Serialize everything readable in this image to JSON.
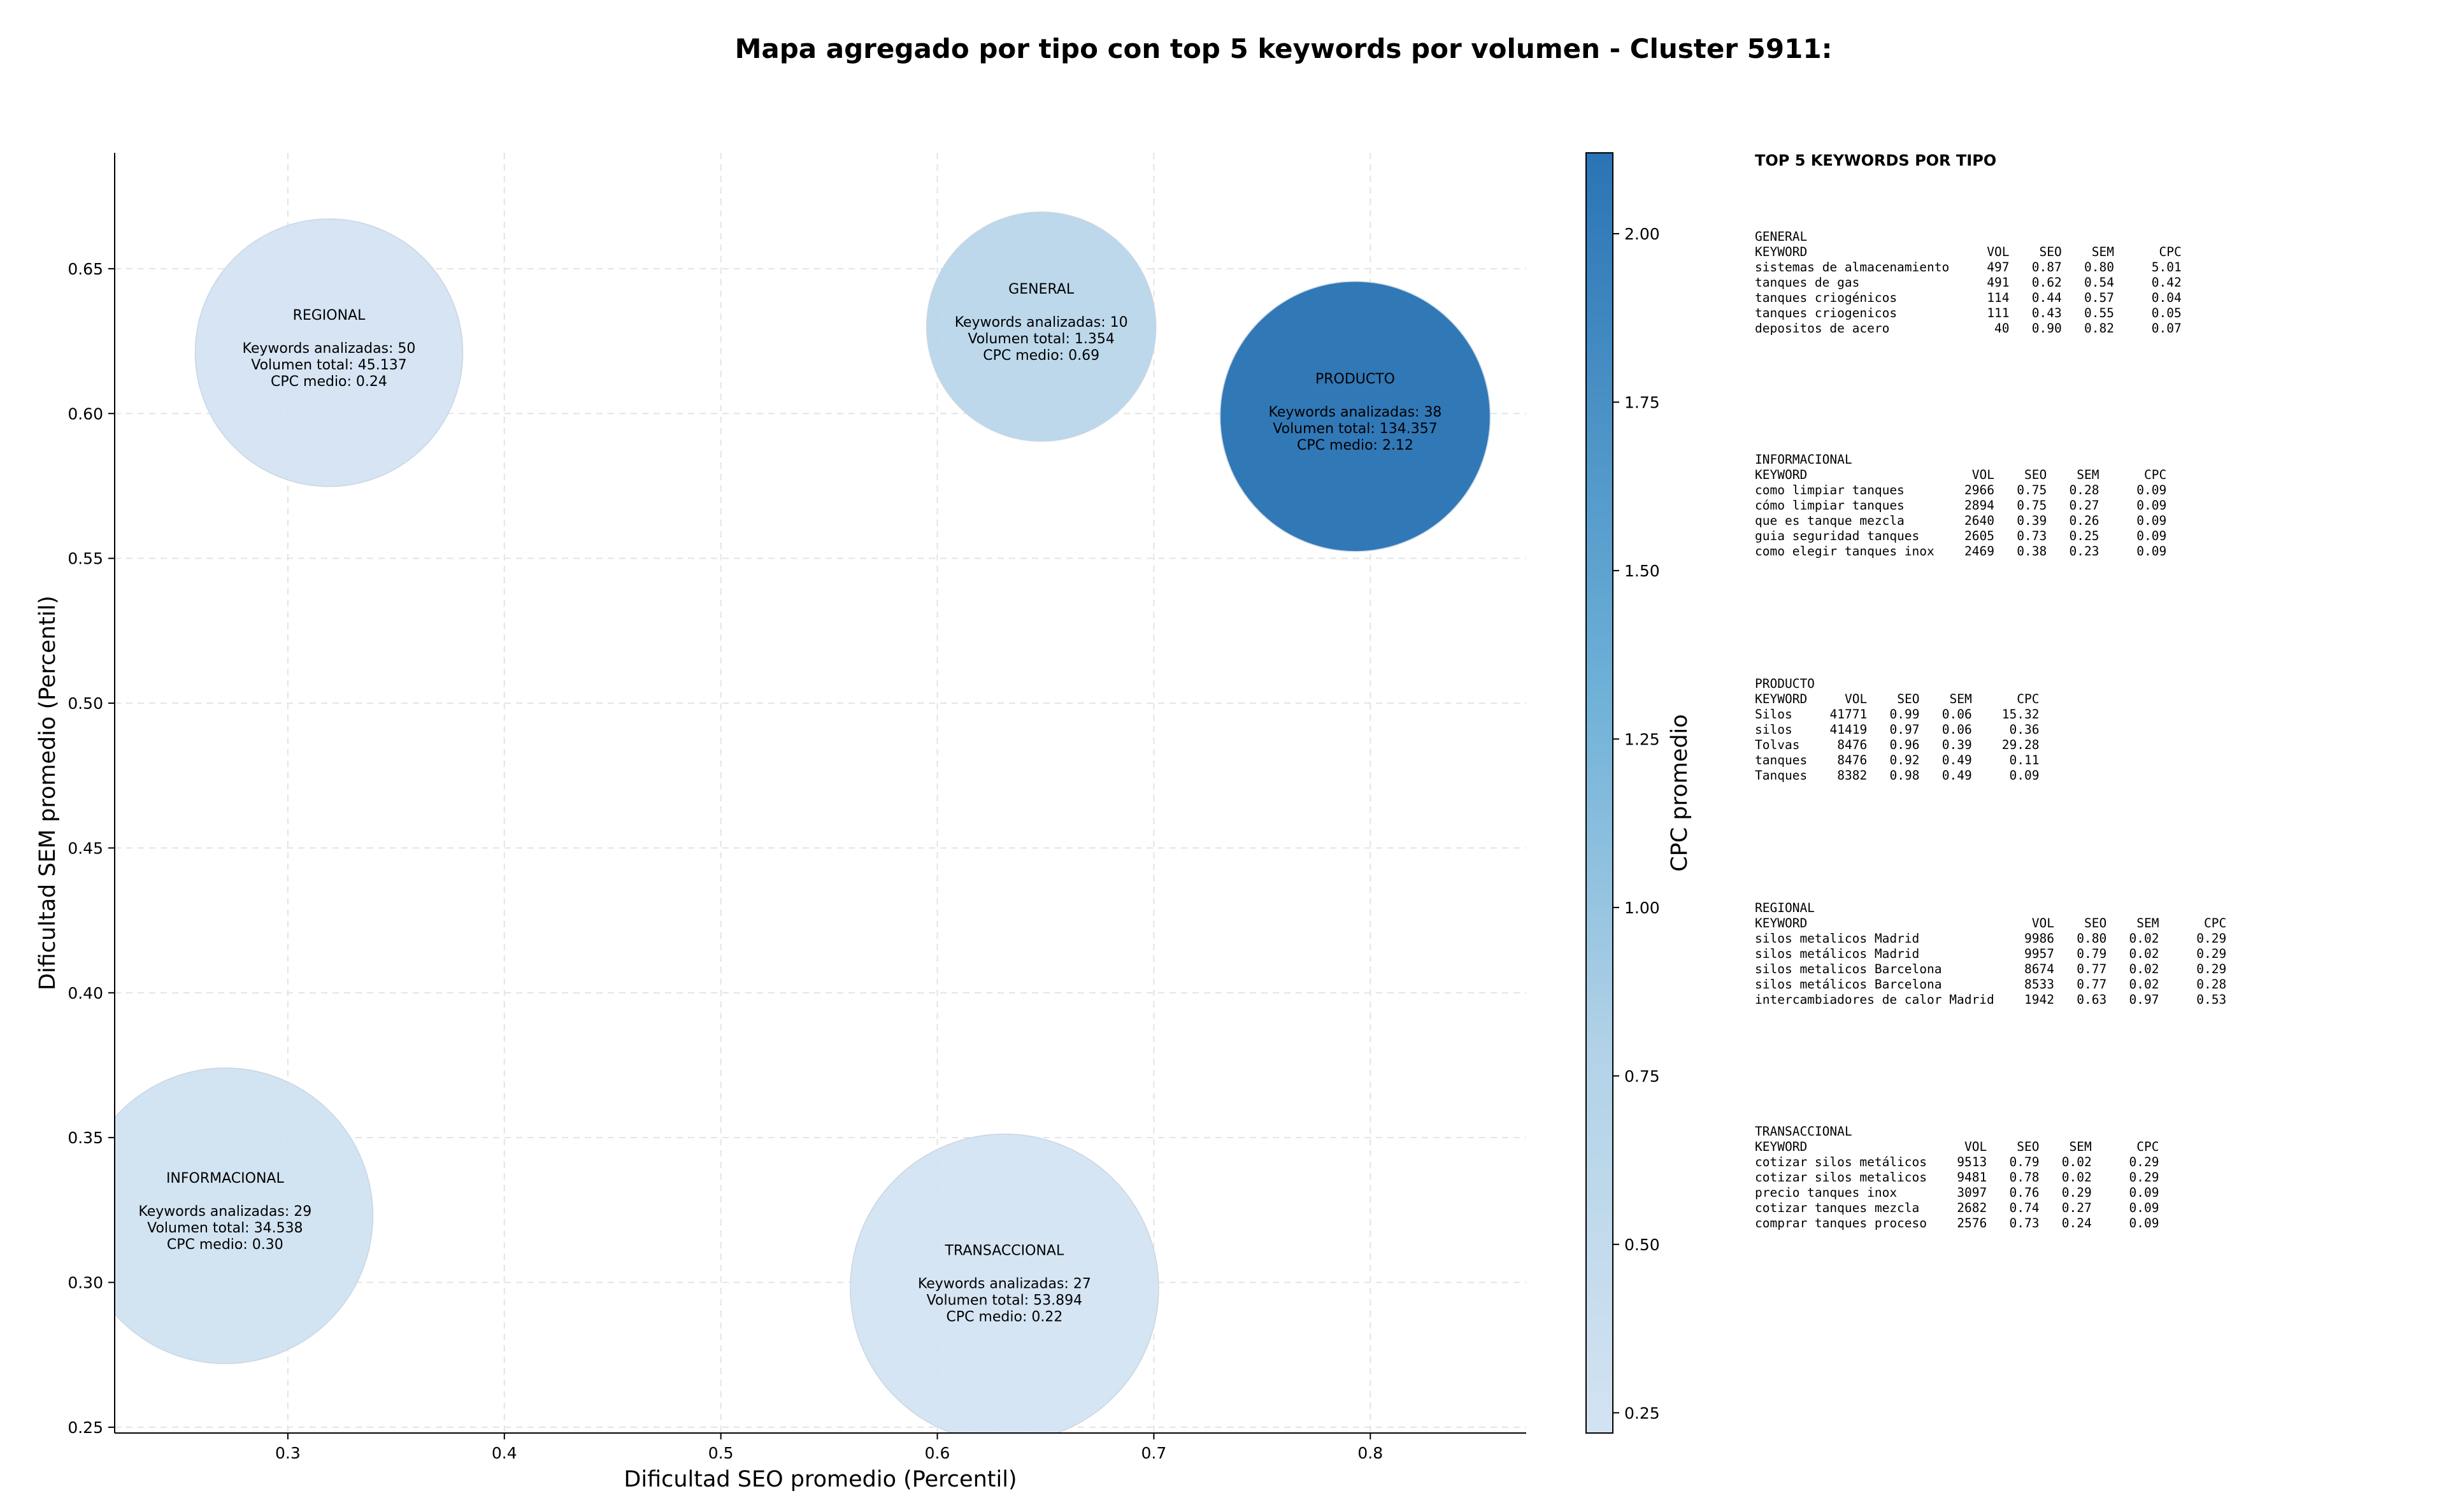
{
  "title": "Mapa agregado por tipo con top 5 keywords por volumen - Cluster 5911:",
  "chart_data": {
    "type": "scatter",
    "title": "Mapa agregado por tipo con top 5 keywords por volumen - Cluster 5911:",
    "xlabel": "Dificultad SEO promedio (Percentil)",
    "ylabel": "Dificultad SEM promedio (Percentil)",
    "xlim": [
      0.22,
      0.872
    ],
    "ylim": [
      0.248,
      0.69
    ],
    "xticks": [
      "0.3",
      "0.4",
      "0.5",
      "0.6",
      "0.7",
      "0.8"
    ],
    "yticks": [
      "0.25",
      "0.30",
      "0.35",
      "0.40",
      "0.45",
      "0.50",
      "0.55",
      "0.60",
      "0.65"
    ],
    "grid": true,
    "colorbar": {
      "label": "CPC promedio",
      "range": [
        0.22,
        2.12
      ],
      "ticks": [
        "0.25",
        "0.50",
        "0.75",
        "1.00",
        "1.25",
        "1.50",
        "1.75",
        "2.00"
      ]
    },
    "points": [
      {
        "name": "REGIONAL",
        "x": 0.319,
        "y": 0.621,
        "keywords_label": "Keywords analizadas: 50",
        "volume_label": "Volumen total: 45.137",
        "cpc_label": "CPC medio: 0.24",
        "cpc": 0.24,
        "volume": 45137
      },
      {
        "name": "GENERAL",
        "x": 0.648,
        "y": 0.63,
        "keywords_label": "Keywords analizadas: 10",
        "volume_label": "Volumen total: 1.354",
        "cpc_label": "CPC medio: 0.69",
        "cpc": 0.69,
        "volume": 1354
      },
      {
        "name": "PRODUCTO",
        "x": 0.793,
        "y": 0.599,
        "keywords_label": "Keywords analizadas: 38",
        "volume_label": "Volumen total: 134.357",
        "cpc_label": "CPC medio: 2.12",
        "cpc": 2.12,
        "volume": 134357
      },
      {
        "name": "INFORMACIONAL",
        "x": 0.271,
        "y": 0.323,
        "keywords_label": "Keywords analizadas: 29",
        "volume_label": "Volumen total: 34.538",
        "cpc_label": "CPC medio: 0.30",
        "cpc": 0.3,
        "volume": 34538
      },
      {
        "name": "TRANSACCIONAL",
        "x": 0.631,
        "y": 0.298,
        "keywords_label": "Keywords analizadas: 27",
        "volume_label": "Volumen total: 53.894",
        "cpc_label": "CPC medio: 0.22",
        "cpc": 0.22,
        "volume": 53894
      }
    ]
  },
  "side_panel": {
    "title": "TOP 5 KEYWORDS POR TIPO",
    "headers": [
      "KEYWORD",
      "VOL",
      "SEO",
      "SEM",
      "CPC"
    ],
    "groups": [
      {
        "name": "GENERAL",
        "rows": [
          [
            "sistemas de almacenamiento",
            "497",
            "0.87",
            "0.80",
            "5.01"
          ],
          [
            "tanques de gas",
            "491",
            "0.62",
            "0.54",
            "0.42"
          ],
          [
            "tanques criogénicos",
            "114",
            "0.44",
            "0.57",
            "0.04"
          ],
          [
            "tanques criogenicos",
            "111",
            "0.43",
            "0.55",
            "0.05"
          ],
          [
            "depositos de acero",
            "40",
            "0.90",
            "0.82",
            "0.07"
          ]
        ]
      },
      {
        "name": "INFORMACIONAL",
        "rows": [
          [
            "como limpiar tanques",
            "2966",
            "0.75",
            "0.28",
            "0.09"
          ],
          [
            "cómo limpiar tanques",
            "2894",
            "0.75",
            "0.27",
            "0.09"
          ],
          [
            "que es tanque mezcla",
            "2640",
            "0.39",
            "0.26",
            "0.09"
          ],
          [
            "guia seguridad tanques",
            "2605",
            "0.73",
            "0.25",
            "0.09"
          ],
          [
            "como elegir tanques inox",
            "2469",
            "0.38",
            "0.23",
            "0.09"
          ]
        ]
      },
      {
        "name": "PRODUCTO",
        "rows": [
          [
            "Silos",
            "41771",
            "0.99",
            "0.06",
            "15.32"
          ],
          [
            "silos",
            "41419",
            "0.97",
            "0.06",
            "0.36"
          ],
          [
            "Tolvas",
            "8476",
            "0.96",
            "0.39",
            "29.28"
          ],
          [
            "tanques",
            "8476",
            "0.92",
            "0.49",
            "0.11"
          ],
          [
            "Tanques",
            "8382",
            "0.98",
            "0.49",
            "0.09"
          ]
        ]
      },
      {
        "name": "REGIONAL",
        "rows": [
          [
            "silos metalicos Madrid",
            "9986",
            "0.80",
            "0.02",
            "0.29"
          ],
          [
            "silos metálicos Madrid",
            "9957",
            "0.79",
            "0.02",
            "0.29"
          ],
          [
            "silos metalicos Barcelona",
            "8674",
            "0.77",
            "0.02",
            "0.29"
          ],
          [
            "silos metálicos Barcelona",
            "8533",
            "0.77",
            "0.02",
            "0.28"
          ],
          [
            "intercambiadores de calor Madrid",
            "1942",
            "0.63",
            "0.97",
            "0.53"
          ]
        ]
      },
      {
        "name": "TRANSACCIONAL",
        "rows": [
          [
            "cotizar silos metálicos",
            "9513",
            "0.79",
            "0.02",
            "0.29"
          ],
          [
            "cotizar silos metalicos",
            "9481",
            "0.78",
            "0.02",
            "0.29"
          ],
          [
            "precio tanques inox",
            "3097",
            "0.76",
            "0.29",
            "0.09"
          ],
          [
            "cotizar tanques mezcla",
            "2682",
            "0.74",
            "0.27",
            "0.09"
          ],
          [
            "comprar tanques proceso",
            "2576",
            "0.73",
            "0.24",
            "0.09"
          ]
        ]
      }
    ]
  }
}
